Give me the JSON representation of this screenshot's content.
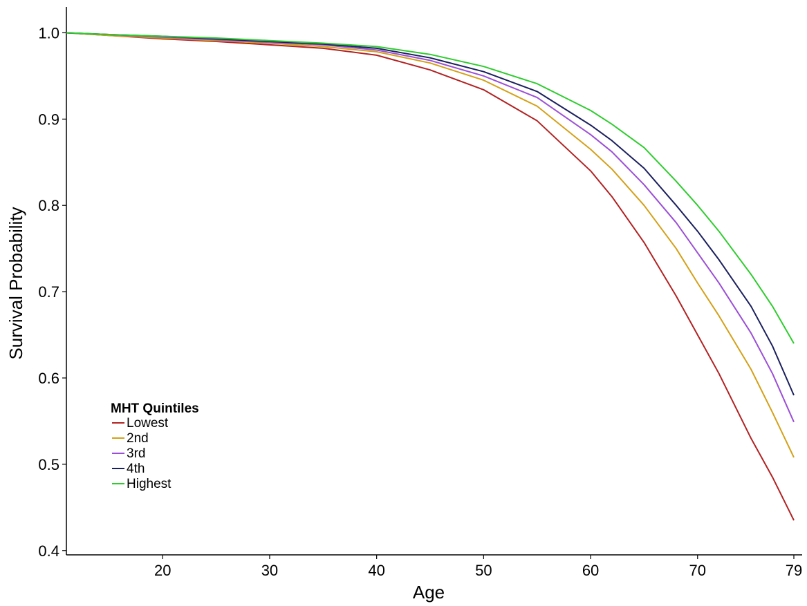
{
  "chart_data": {
    "type": "line",
    "title": "",
    "xlabel": "Age",
    "ylabel": "Survival Probability",
    "xlim": [
      11,
      79
    ],
    "ylim": [
      0.395,
      1.03
    ],
    "x_ticks": [
      20,
      30,
      40,
      50,
      60,
      70,
      79
    ],
    "y_ticks": [
      0.4,
      0.5,
      0.6,
      0.7,
      0.8,
      0.9,
      1.0
    ],
    "y_tick_labels": [
      "0.4",
      "0.5",
      "0.6",
      "0.7",
      "0.8",
      "0.9",
      "1.0"
    ],
    "grid": false,
    "legend": {
      "title": "MHT Quintiles",
      "position": "bottom-left"
    },
    "x": [
      11,
      15,
      20,
      25,
      30,
      35,
      40,
      45,
      50,
      55,
      60,
      62,
      65,
      68,
      70,
      72,
      75,
      77,
      79
    ],
    "series": [
      {
        "name": "Lowest",
        "color": "#b22222",
        "values": [
          1.0,
          0.997,
          0.993,
          0.99,
          0.986,
          0.982,
          0.974,
          0.957,
          0.934,
          0.898,
          0.84,
          0.81,
          0.757,
          0.695,
          0.65,
          0.605,
          0.53,
          0.485,
          0.435
        ]
      },
      {
        "name": "2nd",
        "color": "#d4a017",
        "values": [
          1.0,
          0.997,
          0.994,
          0.991,
          0.988,
          0.984,
          0.978,
          0.965,
          0.945,
          0.915,
          0.865,
          0.842,
          0.8,
          0.75,
          0.71,
          0.672,
          0.61,
          0.56,
          0.508
        ]
      },
      {
        "name": "3rd",
        "color": "#9b4fd6",
        "values": [
          1.0,
          0.998,
          0.995,
          0.992,
          0.989,
          0.986,
          0.98,
          0.968,
          0.95,
          0.925,
          0.882,
          0.862,
          0.824,
          0.78,
          0.745,
          0.71,
          0.652,
          0.605,
          0.549
        ]
      },
      {
        "name": "4th",
        "color": "#1a1f5e",
        "values": [
          1.0,
          0.998,
          0.996,
          0.993,
          0.99,
          0.987,
          0.982,
          0.971,
          0.955,
          0.932,
          0.893,
          0.875,
          0.843,
          0.8,
          0.77,
          0.737,
          0.683,
          0.637,
          0.58
        ]
      },
      {
        "name": "Highest",
        "color": "#2ecc2e",
        "values": [
          1.0,
          0.998,
          0.996,
          0.994,
          0.991,
          0.988,
          0.984,
          0.975,
          0.961,
          0.941,
          0.91,
          0.894,
          0.867,
          0.828,
          0.8,
          0.77,
          0.72,
          0.683,
          0.64
        ]
      }
    ]
  }
}
